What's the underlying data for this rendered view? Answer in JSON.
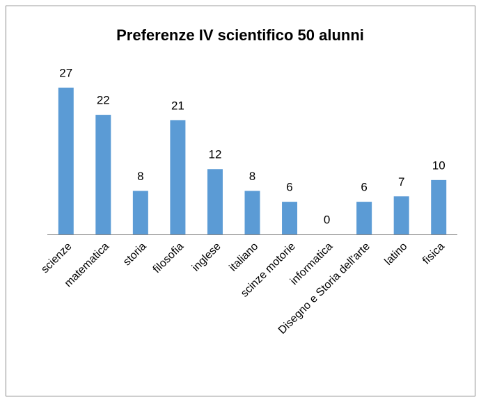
{
  "chart_data": {
    "type": "bar",
    "title": "Preferenze IV scientifico 50 alunni",
    "categories": [
      "scienze",
      "matematica",
      "storia",
      "filosofia",
      "inglese",
      "italiano",
      "scinze motorie",
      "informatica",
      "Disegno e Storia dell'arte",
      "latino",
      "fisica"
    ],
    "values": [
      27,
      22,
      8,
      21,
      12,
      8,
      6,
      0,
      6,
      7,
      10
    ],
    "color": "#5b9bd5",
    "grid": false
  }
}
